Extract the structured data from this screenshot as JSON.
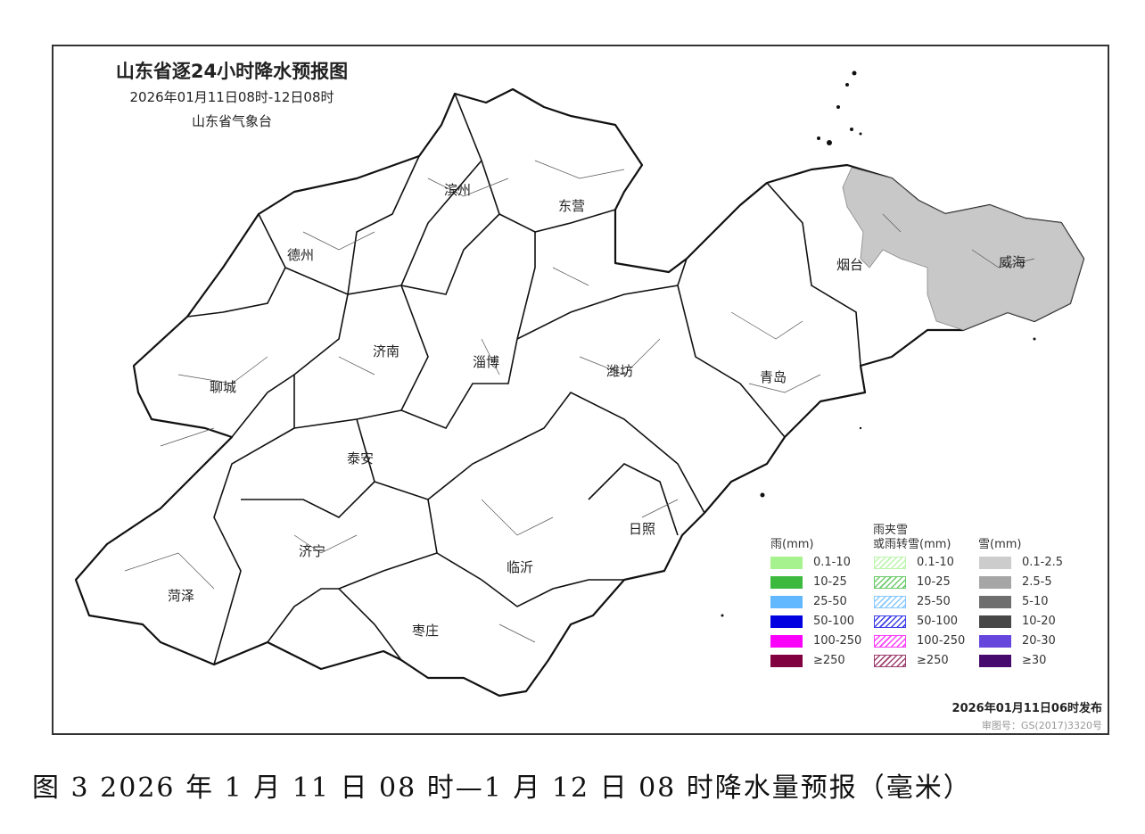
{
  "header": {
    "title": "山东省逐24小时降水预报图",
    "period": "2026年01月11日08时-12日08时",
    "issuer": "山东省气象台"
  },
  "map": {
    "region": "山东省",
    "snow_area_color": "#c8c8c8",
    "cities": [
      "滨州",
      "东营",
      "德州",
      "烟台",
      "威海",
      "济南",
      "淄博",
      "潍坊",
      "聊城",
      "青岛",
      "泰安",
      "日照",
      "济宁",
      "临沂",
      "菏泽",
      "枣庄"
    ]
  },
  "legend": {
    "rain": {
      "title": "雨(mm)",
      "items": [
        {
          "label": "0.1-10",
          "color": "#a6f28f"
        },
        {
          "label": "10-25",
          "color": "#3dba3d"
        },
        {
          "label": "25-50",
          "color": "#61b8ff"
        },
        {
          "label": "50-100",
          "color": "#0000e1"
        },
        {
          "label": "100-250",
          "color": "#fa00fa"
        },
        {
          "label": "≥250",
          "color": "#800040"
        }
      ]
    },
    "mixed": {
      "title_line1": "雨夹雪",
      "title_line2": "或雨转雪(mm)",
      "items": [
        {
          "label": "0.1-10",
          "color": "#a6f28f"
        },
        {
          "label": "10-25",
          "color": "#3dba3d"
        },
        {
          "label": "25-50",
          "color": "#61b8ff"
        },
        {
          "label": "50-100",
          "color": "#0000e1"
        },
        {
          "label": "100-250",
          "color": "#fa00fa"
        },
        {
          "label": "≥250",
          "color": "#800040"
        }
      ]
    },
    "snow": {
      "title": "雪(mm)",
      "items": [
        {
          "label": "0.1-2.5",
          "color": "#cccccc"
        },
        {
          "label": "2.5-5",
          "color": "#a6a6a6"
        },
        {
          "label": "5-10",
          "color": "#6e6e6e"
        },
        {
          "label": "10-20",
          "color": "#474747"
        },
        {
          "label": "20-30",
          "color": "#6646dc"
        },
        {
          "label": "≥30",
          "color": "#460a6e"
        }
      ]
    }
  },
  "footer": {
    "issued": "2026年01月11日06时发布",
    "review_number": "审图号：GS(2017)3320号"
  },
  "caption": "图 3 2026 年 1 月 11 日 08 时—1 月 12 日 08 时降水量预报（毫米）"
}
